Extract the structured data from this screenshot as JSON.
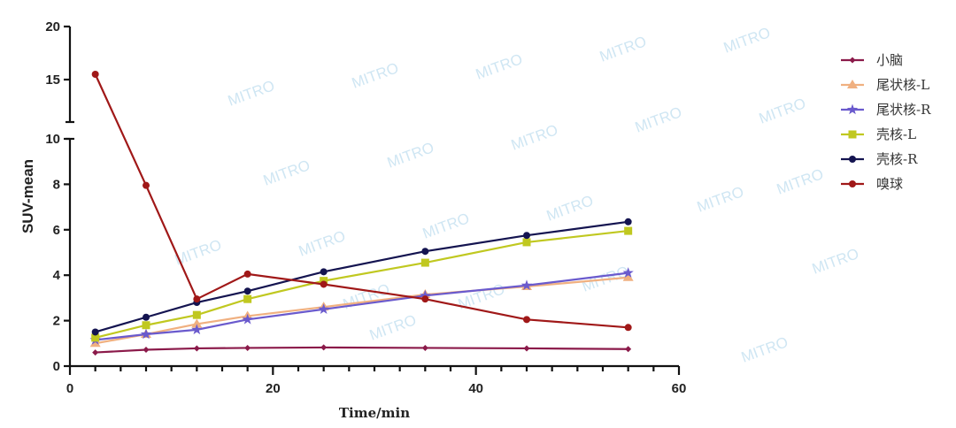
{
  "chart_data": {
    "type": "line",
    "title": "",
    "xlabel": "Time/min",
    "ylabel": "SUV-mean",
    "xlim": [
      0,
      60
    ],
    "xticks": [
      0,
      20,
      40,
      60
    ],
    "ylim": [
      0,
      20
    ],
    "y_axis_break": [
      10,
      11
    ],
    "yticks": [
      0,
      2,
      4,
      6,
      8,
      10,
      15,
      20
    ],
    "grid": false,
    "legend_position": "right",
    "x": [
      2.5,
      7.5,
      12.5,
      17.5,
      25,
      35,
      45,
      55
    ],
    "series": [
      {
        "name": "小脑",
        "color": "#8b1a4a",
        "marker": "diamond",
        "values": [
          0.6,
          0.72,
          0.78,
          0.8,
          0.82,
          0.8,
          0.78,
          0.75
        ]
      },
      {
        "name": "尾状核-L",
        "color": "#f0b080",
        "marker": "triangle",
        "values": [
          1.0,
          1.4,
          1.85,
          2.2,
          2.6,
          3.15,
          3.5,
          3.9
        ]
      },
      {
        "name": "尾状核-R",
        "color": "#6a5acd",
        "marker": "star",
        "values": [
          1.15,
          1.4,
          1.6,
          2.05,
          2.5,
          3.1,
          3.55,
          4.1
        ]
      },
      {
        "name": "壳核-L",
        "color": "#c0c820",
        "marker": "square",
        "values": [
          1.25,
          1.8,
          2.25,
          2.95,
          3.75,
          4.55,
          5.45,
          5.95
        ]
      },
      {
        "name": "壳核-R",
        "color": "#141450",
        "marker": "circle",
        "values": [
          1.5,
          2.15,
          2.8,
          3.3,
          4.15,
          5.05,
          5.75,
          6.35
        ]
      },
      {
        "name": "嗅球",
        "color": "#a01818",
        "marker": "circle",
        "values": [
          15.5,
          7.95,
          2.95,
          4.05,
          3.6,
          2.95,
          2.05,
          1.7
        ]
      }
    ]
  },
  "watermark": "MITRO"
}
